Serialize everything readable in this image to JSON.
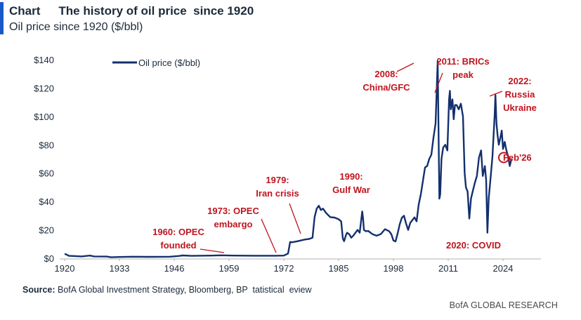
{
  "header": {
    "label": "Chart",
    "title": "The history of oil price  since 1920",
    "subtitle": "Oil price since 1920 ($/bbl)"
  },
  "footer": {
    "source_label": "Source:",
    "source_text": " BofA Global Investment Strategy, Bloomberg, BP  tatistical  eview",
    "brand": "BofA GLOBAL RESEARCH"
  },
  "colors": {
    "line": "#13306e",
    "annotation": "#c0141e",
    "accent": "#1a57c7",
    "axis": "#b0b0b0"
  },
  "chart_data": {
    "type": "line",
    "title": "Oil price since 1920 ($/bbl)",
    "xlabel": "",
    "ylabel": "",
    "xlim": [
      1920,
      2030
    ],
    "ylim": [
      0,
      140
    ],
    "grid": false,
    "legend": {
      "position": "top-left",
      "entries": [
        "Oil price ($/bbl)"
      ]
    },
    "x_ticks": [
      1920,
      1933,
      1946,
      1959,
      1972,
      1985,
      1998,
      2011,
      2024
    ],
    "x_tick_labels": [
      "1920",
      "1933",
      "1946",
      "1959",
      "1972",
      "1985",
      "1998",
      "2011",
      "2024"
    ],
    "y_ticks": [
      0,
      20,
      40,
      60,
      80,
      100,
      120,
      140
    ],
    "y_tick_labels": [
      "$0",
      "$20",
      "$40",
      "$60",
      "$80",
      "$100",
      "$120",
      "$140"
    ],
    "series": [
      {
        "name": "Oil price ($/bbl)",
        "x": [
          1920,
          1920.5,
          1921,
          1922,
          1924,
          1926,
          1927,
          1930,
          1931,
          1933,
          1936,
          1940,
          1945,
          1947,
          1948,
          1950,
          1955,
          1957,
          1960,
          1965,
          1970,
          1972,
          1973,
          1973.5,
          1974,
          1975,
          1976,
          1977,
          1978,
          1978.8,
          1979.3,
          1979.8,
          1980.3,
          1980.8,
          1981.3,
          1982,
          1983,
          1984,
          1985,
          1985.6,
          1986,
          1986.3,
          1986.7,
          1987,
          1987.5,
          1988,
          1988.5,
          1989,
          1989.5,
          1990,
          1990.6,
          1990.8,
          1991,
          1991.5,
          1992,
          1993,
          1994,
          1995,
          1996,
          1997,
          1997.5,
          1998,
          1998.5,
          1999,
          1999.5,
          2000,
          2000.5,
          2001,
          2001.5,
          2002,
          2003,
          2003.5,
          2004,
          2004.5,
          2005,
          2005.5,
          2006,
          2006.5,
          2007,
          2007.5,
          2008,
          2008.5,
          2008.9,
          2009.1,
          2009.4,
          2009.8,
          2010.3,
          2010.8,
          2011.2,
          2011.4,
          2011.6,
          2012,
          2012.3,
          2012.6,
          2013,
          2013.5,
          2014,
          2014.5,
          2014.9,
          2015.2,
          2015.6,
          2016,
          2016.4,
          2016.8,
          2017.3,
          2017.8,
          2018.3,
          2018.8,
          2019.2,
          2019.7,
          2020,
          2020.3,
          2020.6,
          2021,
          2021.5,
          2022,
          2022.2,
          2022.45,
          2022.7,
          2023,
          2023.3,
          2023.7,
          2024,
          2024.4,
          2024.8,
          2025.2,
          2025.6,
          2026
        ],
        "values": [
          3.1,
          2.5,
          1.7,
          1.6,
          1.3,
          1.9,
          1.3,
          1.2,
          0.7,
          0.9,
          1.1,
          1.0,
          1.1,
          1.6,
          2.0,
          1.7,
          1.9,
          2.1,
          1.9,
          1.8,
          1.8,
          1.9,
          3.3,
          11.5,
          11.3,
          11.8,
          12.5,
          13.2,
          13.6,
          14.5,
          29,
          35,
          37,
          34,
          35,
          32,
          29,
          28.7,
          27.5,
          26,
          14,
          12,
          16,
          18,
          17,
          14.5,
          16,
          18,
          20,
          18,
          33,
          28,
          20,
          19,
          19.3,
          17,
          15.9,
          17,
          20.5,
          19,
          17,
          12.5,
          11.8,
          17.5,
          24,
          28.5,
          30,
          24.5,
          20,
          25,
          28.8,
          26,
          38,
          45,
          54.5,
          64,
          65,
          70,
          73,
          85,
          95,
          139,
          42,
          45,
          70,
          78,
          80,
          76,
          112,
          118,
          105,
          112,
          98,
          108,
          108,
          105,
          109,
          100,
          60,
          50,
          47,
          28,
          42,
          47,
          53,
          58,
          71,
          76,
          58,
          65,
          55,
          18,
          42,
          55,
          72,
          100,
          115,
          95,
          87,
          80,
          84,
          90,
          77,
          82,
          76,
          72,
          65,
          70
        ]
      }
    ],
    "annotations": [
      {
        "text": [
          "1960: OPEC",
          "founded"
        ],
        "x": 1961
      },
      {
        "text": [
          "1973: OPEC",
          "embargo"
        ],
        "x": 1975
      },
      {
        "text": [
          "1979:",
          "Iran crisis"
        ],
        "x": 1979
      },
      {
        "text": [
          "1990:",
          "Gulf War"
        ],
        "x": 1990
      },
      {
        "text": [
          "2008:",
          "China/GFC"
        ],
        "x": 2008
      },
      {
        "text": [
          "2011: BRICs",
          "peak"
        ],
        "x": 2011
      },
      {
        "text": [
          "2022:",
          "Russia",
          "Ukraine"
        ],
        "x": 2022
      },
      {
        "text": [
          "Feb'26"
        ],
        "x": 2026,
        "y": 70
      },
      {
        "text": [
          "2020: COVID"
        ],
        "x": 2020
      }
    ]
  }
}
